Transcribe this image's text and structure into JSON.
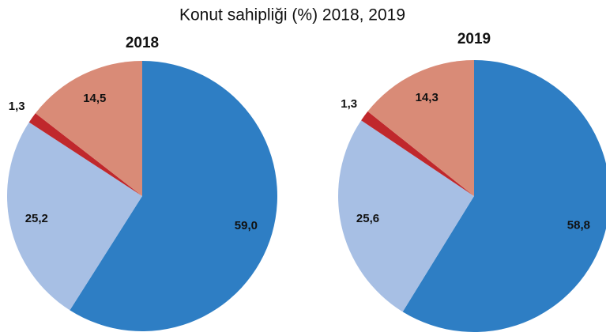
{
  "title": "Konut sahipliği (%) 2018, 2019",
  "chart_data": [
    {
      "type": "pie",
      "title": "2018",
      "values": [
        59.0,
        25.2,
        1.3,
        14.5
      ],
      "value_labels": [
        "59,0",
        "25,2",
        "1,3",
        "14,5"
      ],
      "colors": [
        "#2e7ec4",
        "#a7bfe4",
        "#c0282c",
        "#d98b77"
      ]
    },
    {
      "type": "pie",
      "title": "2019",
      "values": [
        58.8,
        25.6,
        1.3,
        14.3
      ],
      "value_labels": [
        "58,8",
        "25,6",
        "1,3",
        "14,3"
      ],
      "colors": [
        "#2e7ec4",
        "#a7bfe4",
        "#c0282c",
        "#d98b77"
      ]
    }
  ]
}
